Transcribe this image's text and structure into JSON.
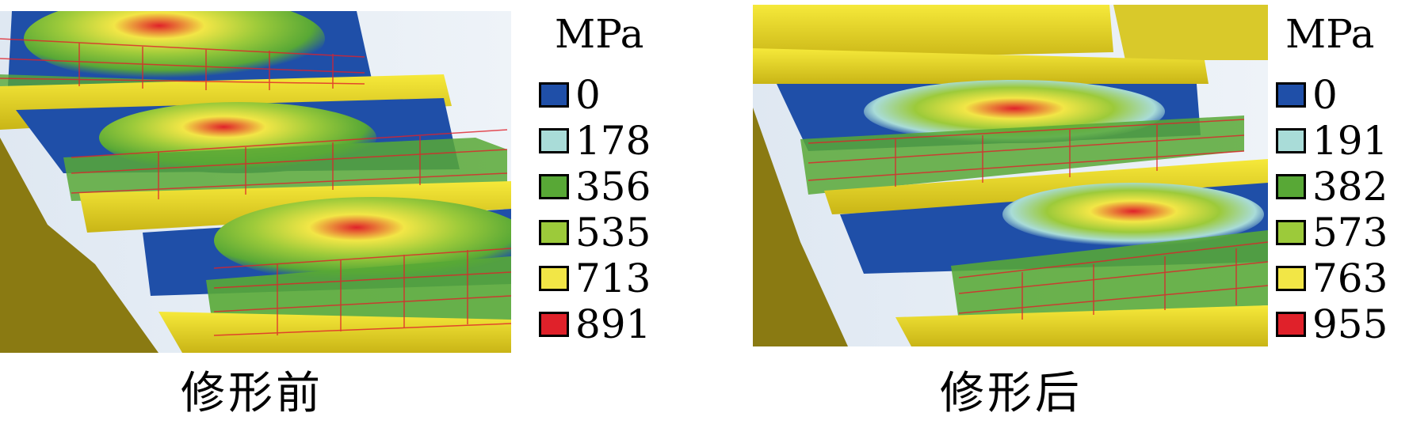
{
  "panels": [
    {
      "caption": "修形前",
      "legend": {
        "unit": "MPa",
        "items": [
          {
            "value": "0",
            "color": "#1f4fa8"
          },
          {
            "value": "178",
            "color": "#a9dcd8"
          },
          {
            "value": "356",
            "color": "#58a836"
          },
          {
            "value": "535",
            "color": "#9cca3a"
          },
          {
            "value": "713",
            "color": "#f2e646"
          },
          {
            "value": "891",
            "color": "#e0212a"
          }
        ]
      }
    },
    {
      "caption": "修形后",
      "legend": {
        "unit": "MPa",
        "items": [
          {
            "value": "0",
            "color": "#1f4fa8"
          },
          {
            "value": "191",
            "color": "#a9dcd8"
          },
          {
            "value": "382",
            "color": "#58a836"
          },
          {
            "value": "573",
            "color": "#9cca3a"
          },
          {
            "value": "763",
            "color": "#f2e646"
          },
          {
            "value": "955",
            "color": "#e0212a"
          }
        ]
      }
    }
  ]
}
